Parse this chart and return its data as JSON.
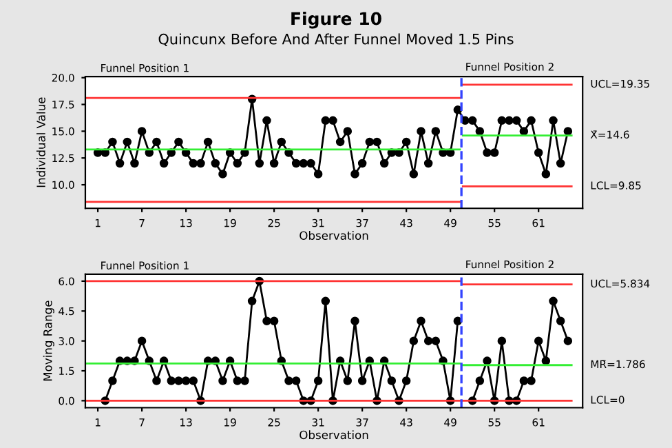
{
  "chart_data": [
    {
      "type": "line",
      "title": "Figure 10",
      "subtitle": "Quincunx Before And After Funnel Moved 1.5 Pins",
      "xlabel": "Observation",
      "ylabel": "Individual Value",
      "xlim": [
        -0.7,
        67
      ],
      "xticks": [
        1,
        7,
        13,
        19,
        25,
        31,
        37,
        43,
        49,
        55,
        61
      ],
      "ylim": [
        7.8,
        20.1
      ],
      "yticks": [
        {
          "value": 10,
          "label": "10.0"
        },
        {
          "value": 12.5,
          "label": "12.5"
        },
        {
          "value": 15,
          "label": "15.0"
        },
        {
          "value": 17.5,
          "label": "17.5"
        },
        {
          "value": 20,
          "label": "20.0"
        }
      ],
      "grid": false,
      "legend": false,
      "series": [
        {
          "color": "#000000",
          "marker": "circle",
          "x": [
            1,
            2,
            3,
            4,
            5,
            6,
            7,
            8,
            9,
            10,
            11,
            12,
            13,
            14,
            15,
            16,
            17,
            18,
            19,
            20,
            21,
            22,
            23,
            24,
            25,
            26,
            27,
            28,
            29,
            30,
            31,
            32,
            33,
            34,
            35,
            36,
            37,
            38,
            39,
            40,
            41,
            42,
            43,
            44,
            45,
            46,
            47,
            48,
            49,
            50,
            51,
            52,
            53,
            54,
            55,
            56,
            57,
            58,
            59,
            60,
            61,
            62,
            63,
            64,
            65
          ],
          "values": [
            13,
            13,
            14,
            12,
            14,
            12,
            15,
            13,
            14,
            12,
            13,
            14,
            13,
            12,
            12,
            14,
            12,
            11,
            13,
            12,
            13,
            18,
            12,
            16,
            12,
            14,
            13,
            12,
            12,
            12,
            11,
            16,
            16,
            14,
            15,
            11,
            12,
            14,
            14,
            12,
            13,
            13,
            14,
            11,
            15,
            12,
            15,
            13,
            13,
            17,
            16,
            16,
            15,
            13,
            13,
            16,
            16,
            16,
            15,
            16,
            13,
            11,
            16,
            12,
            15
          ]
        },
        {
          "color": "#ff3333",
          "marker": "none",
          "x": [
            -0.7,
            50.3
          ],
          "values": [
            18.1,
            18.1
          ]
        },
        {
          "color": "#33ee33",
          "marker": "none",
          "x": [
            -0.7,
            50.3
          ],
          "values": [
            13.3,
            13.3
          ]
        },
        {
          "color": "#ff3333",
          "marker": "none",
          "x": [
            -0.7,
            50.3
          ],
          "values": [
            8.4,
            8.4
          ]
        },
        {
          "name": "UCL=19.35",
          "color": "#ff3333",
          "marker": "none",
          "x": [
            50.7,
            65.5
          ],
          "values": [
            19.35,
            19.35
          ]
        },
        {
          "name": "X̄=14.6",
          "color": "#33ee33",
          "marker": "none",
          "x": [
            50.7,
            65.5
          ],
          "values": [
            14.6,
            14.6
          ]
        },
        {
          "name": "LCL=9.85",
          "color": "#ff3333",
          "marker": "none",
          "x": [
            50.7,
            65.5
          ],
          "values": [
            9.85,
            9.85
          ]
        }
      ],
      "ref_lines": [
        {
          "axis": "x",
          "value": 50.5,
          "color": "#3344ff",
          "line_style": "dashed"
        }
      ],
      "annotations": [
        "Funnel Position 1",
        "Funnel Position 2"
      ]
    },
    {
      "type": "line",
      "xlabel": "Observation",
      "ylabel": "Moving Range",
      "xlim": [
        -0.7,
        67
      ],
      "xticks": [
        1,
        7,
        13,
        19,
        25,
        31,
        37,
        43,
        49,
        55,
        61
      ],
      "ylim": [
        -0.35,
        6.35
      ],
      "yticks": [
        {
          "value": 0,
          "label": "0.0"
        },
        {
          "value": 1.5,
          "label": "1.5"
        },
        {
          "value": 3,
          "label": "3.0"
        },
        {
          "value": 4.5,
          "label": "4.5"
        },
        {
          "value": 6,
          "label": "6.0"
        }
      ],
      "grid": false,
      "legend": false,
      "series": [
        {
          "color": "#000000",
          "marker": "circle",
          "x": [
            2,
            3,
            4,
            5,
            6,
            7,
            8,
            9,
            10,
            11,
            12,
            13,
            14,
            15,
            16,
            17,
            18,
            19,
            20,
            21,
            22,
            23,
            24,
            25,
            26,
            27,
            28,
            29,
            30,
            31,
            32,
            33,
            34,
            35,
            36,
            37,
            38,
            39,
            40,
            41,
            42,
            43,
            44,
            45,
            46,
            47,
            48,
            49,
            50,
            51,
            52,
            53,
            54,
            55,
            56,
            57,
            58,
            59,
            60,
            61,
            62,
            63,
            64,
            65
          ],
          "values": [
            0,
            1,
            2,
            2,
            2,
            3,
            2,
            1,
            2,
            1,
            1,
            1,
            1,
            0,
            2,
            2,
            1,
            2,
            1,
            1,
            5,
            6,
            4,
            4,
            2,
            1,
            1,
            0,
            0,
            1,
            5,
            0,
            2,
            1,
            4,
            1,
            2,
            0,
            2,
            1,
            0,
            1,
            3,
            4,
            3,
            3,
            2,
            0,
            4,
            null,
            0,
            1,
            2,
            0,
            3,
            0,
            0,
            1,
            1,
            3,
            2,
            5,
            4,
            3
          ]
        },
        {
          "color": "#ff3333",
          "marker": "none",
          "x": [
            -0.7,
            50.3
          ],
          "values": [
            6.0,
            6.0
          ]
        },
        {
          "color": "#33ee33",
          "marker": "none",
          "x": [
            -0.7,
            50.3
          ],
          "values": [
            1.87,
            1.87
          ]
        },
        {
          "color": "#ff3333",
          "marker": "none",
          "x": [
            -0.7,
            50.3
          ],
          "values": [
            0,
            0
          ]
        },
        {
          "name": "UCL=5.834",
          "color": "#ff3333",
          "marker": "none",
          "x": [
            50.7,
            65.5
          ],
          "values": [
            5.834,
            5.834
          ]
        },
        {
          "name": "MR̄=1.786",
          "color": "#33ee33",
          "marker": "none",
          "x": [
            50.7,
            65.5
          ],
          "values": [
            1.786,
            1.786
          ]
        },
        {
          "name": "LCL=0",
          "color": "#ff3333",
          "marker": "none",
          "x": [
            50.7,
            65.5
          ],
          "values": [
            0,
            0
          ]
        }
      ],
      "ref_lines": [
        {
          "axis": "x",
          "value": 50.5,
          "color": "#3344ff",
          "line_style": "dashed"
        }
      ],
      "annotations": [
        "Funnel Position 1",
        "Funnel Position 2"
      ]
    }
  ]
}
